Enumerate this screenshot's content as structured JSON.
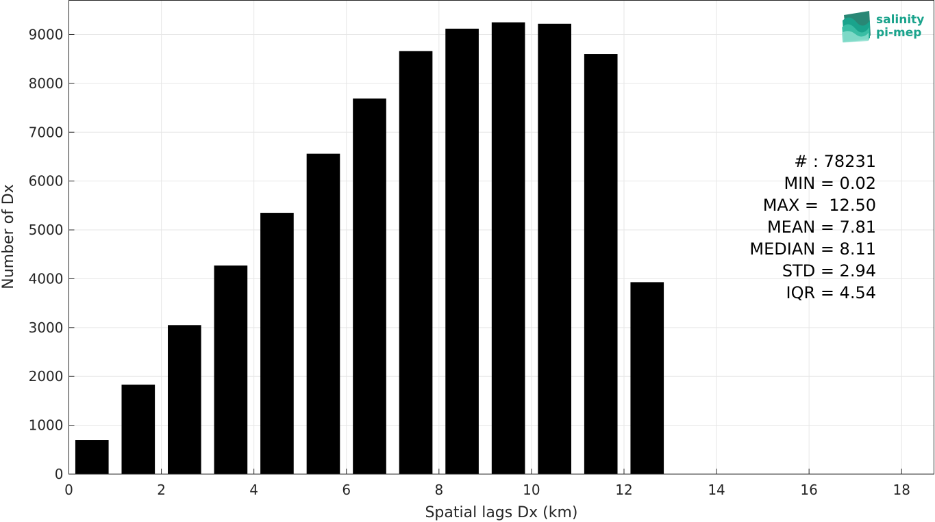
{
  "chart_data": {
    "type": "bar",
    "title": "",
    "xlabel": "Spatial lags Dx (km)",
    "ylabel": "Number of Dx",
    "xlim": [
      0,
      18.7
    ],
    "ylim": [
      0,
      9700
    ],
    "xticks": [
      0,
      2,
      4,
      6,
      8,
      10,
      12,
      14,
      16,
      18
    ],
    "yticks": [
      0,
      1000,
      2000,
      3000,
      4000,
      5000,
      6000,
      7000,
      8000,
      9000
    ],
    "grid": true,
    "bar_width": 0.72,
    "bar_color": "#000000",
    "x": [
      0.5,
      1.5,
      2.5,
      3.5,
      4.5,
      5.5,
      6.5,
      7.5,
      8.5,
      9.5,
      10.5,
      11.5,
      12.5
    ],
    "values": [
      700,
      1830,
      3050,
      4270,
      5350,
      6560,
      7690,
      8660,
      9120,
      9250,
      9220,
      8600,
      3930
    ]
  },
  "stats": {
    "lines": [
      "# : 78231",
      "MIN = 0.02",
      "MAX =  12.50",
      "MEAN = 7.81",
      "MEDIAN = 8.11",
      "STD = 2.94",
      "IQR = 4.54"
    ]
  },
  "logo": {
    "line1": "salinity",
    "line2": "pi-mep",
    "color": "#1aa38c"
  }
}
